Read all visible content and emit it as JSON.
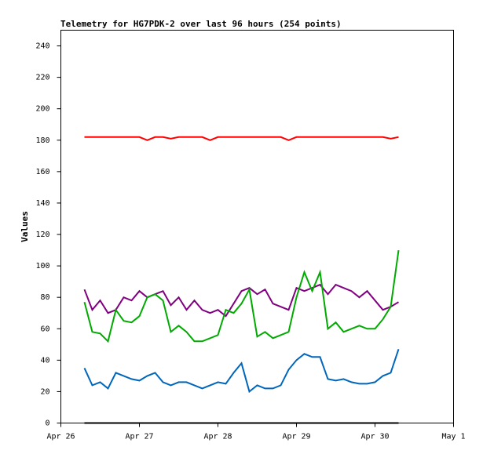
{
  "chart_data": {
    "type": "line",
    "title": "Telemetry for HG7PDK-2 over last 96 hours (254 points)",
    "y_label": "Values",
    "x": [
      26.3,
      26.4,
      26.5,
      26.6,
      26.7,
      26.8,
      26.9,
      27.0,
      27.1,
      27.2,
      27.3,
      27.4,
      27.5,
      27.6,
      27.7,
      27.8,
      27.9,
      28.0,
      28.1,
      28.2,
      28.3,
      28.4,
      28.5,
      28.6,
      28.7,
      28.8,
      28.9,
      29.0,
      29.1,
      29.2,
      29.3,
      29.4,
      29.5,
      29.6,
      29.7,
      29.8,
      29.9,
      30.0,
      30.1,
      30.2,
      30.3
    ],
    "xlim": [
      26,
      31
    ],
    "xticks": [
      {
        "value": 26,
        "label": "Apr 26"
      },
      {
        "value": 27,
        "label": "Apr 27"
      },
      {
        "value": 28,
        "label": "Apr 28"
      },
      {
        "value": 29,
        "label": "Apr 29"
      },
      {
        "value": 30,
        "label": "Apr 30"
      },
      {
        "value": 31,
        "label": "May 1"
      }
    ],
    "ylim": [
      0,
      250
    ],
    "yticks": [
      0,
      20,
      40,
      60,
      80,
      100,
      120,
      140,
      160,
      180,
      200,
      220,
      240
    ],
    "series": [
      {
        "color": "#ff0000",
        "values": [
          182,
          182,
          182,
          182,
          182,
          182,
          182,
          182,
          180,
          182,
          182,
          181,
          182,
          182,
          182,
          182,
          180,
          182,
          182,
          182,
          182,
          182,
          182,
          182,
          182,
          182,
          180,
          182,
          182,
          182,
          182,
          182,
          182,
          182,
          182,
          182,
          182,
          182,
          182,
          181,
          182
        ]
      },
      {
        "color": "#800080",
        "values": [
          85,
          72,
          78,
          70,
          72,
          80,
          78,
          84,
          80,
          82,
          84,
          75,
          80,
          72,
          78,
          72,
          70,
          72,
          68,
          76,
          84,
          86,
          82,
          85,
          76,
          74,
          72,
          86,
          84,
          86,
          88,
          82,
          88,
          86,
          84,
          80,
          84,
          78,
          72,
          74,
          77
        ]
      },
      {
        "color": "#00aa00",
        "values": [
          77,
          58,
          57,
          52,
          72,
          65,
          64,
          68,
          80,
          82,
          78,
          58,
          62,
          58,
          52,
          52,
          54,
          56,
          72,
          70,
          76,
          85,
          55,
          58,
          54,
          56,
          58,
          80,
          96,
          84,
          96,
          60,
          64,
          58,
          60,
          62,
          60,
          60,
          66,
          74,
          110
        ]
      },
      {
        "color": "#0066bb",
        "values": [
          35,
          24,
          26,
          22,
          32,
          30,
          28,
          27,
          30,
          32,
          26,
          24,
          26,
          26,
          24,
          22,
          24,
          26,
          25,
          32,
          38,
          20,
          24,
          22,
          22,
          24,
          34,
          40,
          44,
          42,
          42,
          28,
          27,
          28,
          26,
          25,
          25,
          26,
          30,
          32,
          47
        ]
      },
      {
        "color": "#000000",
        "values": [
          0,
          0,
          0,
          0,
          0,
          0,
          0,
          0,
          0,
          0,
          0,
          0,
          0,
          0,
          0,
          0,
          0,
          0,
          0,
          0,
          0,
          0,
          0,
          0,
          0,
          0,
          0,
          0,
          0,
          0,
          0,
          0,
          0,
          0,
          0,
          0,
          0,
          0,
          0,
          0,
          0
        ]
      }
    ]
  }
}
